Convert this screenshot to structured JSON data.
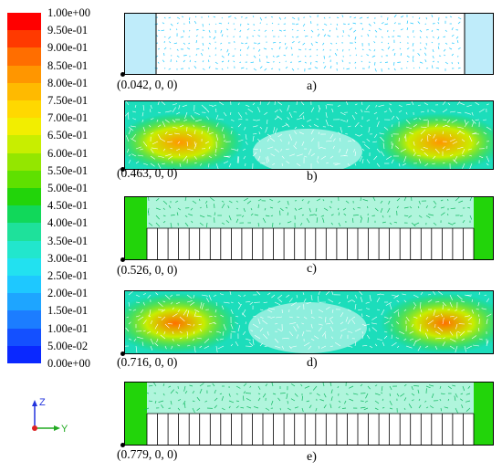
{
  "legend": {
    "ticks": [
      "1.00e+00",
      "9.50e-01",
      "9.00e-01",
      "8.50e-01",
      "8.00e-01",
      "7.50e-01",
      "7.00e-01",
      "6.50e-01",
      "6.00e-01",
      "5.50e-01",
      "5.00e-01",
      "4.50e-01",
      "4.00e-01",
      "3.50e-01",
      "3.00e-01",
      "2.50e-01",
      "2.00e-01",
      "1.50e-01",
      "1.00e-01",
      "5.00e-02",
      "0.00e+00"
    ],
    "colors": [
      "#ff0000",
      "#ff3a00",
      "#ff6e00",
      "#ff9600",
      "#ffba00",
      "#ffd800",
      "#f2ee00",
      "#c8ee00",
      "#94e600",
      "#5fe000",
      "#22d40a",
      "#11d85a",
      "#1ee19b",
      "#22e6cd",
      "#22e1f0",
      "#1ec8ff",
      "#1ea5ff",
      "#1c7dff",
      "#1450ff",
      "#0a28ff"
    ]
  },
  "panels": [
    {
      "coord": "(0.042, 0, 0)",
      "label": "a)"
    },
    {
      "coord": "(0.463, 0, 0)",
      "label": "b)"
    },
    {
      "coord": "(0.526, 0, 0)",
      "label": "c)"
    },
    {
      "coord": "(0.716, 0, 0)",
      "label": "d)"
    },
    {
      "coord": "(0.779, 0, 0)",
      "label": "e)"
    }
  ],
  "axes": {
    "z": "Z",
    "y": "Y"
  }
}
